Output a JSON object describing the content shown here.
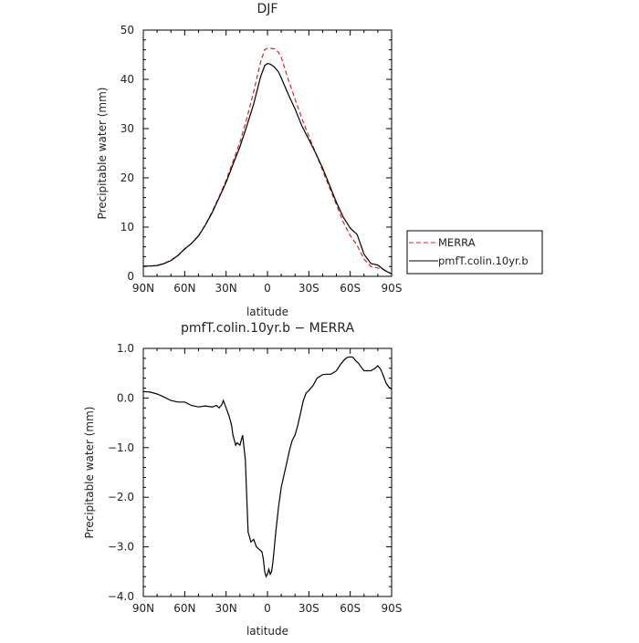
{
  "chart_data": [
    {
      "type": "line",
      "title": "DJF",
      "xlabel": "latitude",
      "ylabel": "Precipitable water (mm)",
      "x_tick_labels": [
        "90N",
        "60N",
        "30N",
        "0",
        "30S",
        "60S",
        "90S"
      ],
      "y_tick_labels": [
        "0",
        "10",
        "20",
        "30",
        "40",
        "50"
      ],
      "xlim": [
        90,
        -90
      ],
      "ylim": [
        0,
        50
      ],
      "grid": false,
      "legend_position": "right, outside plot",
      "series": [
        {
          "name": "MERRA",
          "color": "#e02020",
          "dash": "dashed",
          "x": [
            90,
            85,
            80,
            75,
            70,
            65,
            60,
            55,
            50,
            45,
            40,
            35,
            30,
            25,
            20,
            15,
            10,
            5,
            2,
            0,
            -2,
            -5,
            -8,
            -10,
            -15,
            -20,
            -25,
            -30,
            -35,
            -40,
            -45,
            -50,
            -55,
            -60,
            -65,
            -70,
            -75,
            -80,
            -85,
            -90
          ],
          "values": [
            2.0,
            2.1,
            2.2,
            2.6,
            3.3,
            4.2,
            5.5,
            6.7,
            8.2,
            10.5,
            13.2,
            16.2,
            19.5,
            23.3,
            27.2,
            32.0,
            37.5,
            43.5,
            46.0,
            46.3,
            46.3,
            46.2,
            45.5,
            44.5,
            40.0,
            36.0,
            32.0,
            28.5,
            25.0,
            21.5,
            18.0,
            14.5,
            11.0,
            8.3,
            6.3,
            3.5,
            2.0,
            1.7,
            1.3,
            0.5
          ]
        },
        {
          "name": "pmfT.colin.10yr.b",
          "color": "#000000",
          "dash": "solid",
          "x": [
            90,
            85,
            80,
            75,
            70,
            65,
            60,
            55,
            50,
            45,
            40,
            35,
            30,
            25,
            20,
            15,
            10,
            5,
            2,
            0,
            -2,
            -5,
            -8,
            -10,
            -15,
            -20,
            -25,
            -30,
            -35,
            -40,
            -45,
            -50,
            -55,
            -60,
            -65,
            -70,
            -75,
            -80,
            -85,
            -90
          ],
          "values": [
            2.1,
            2.1,
            2.2,
            2.6,
            3.2,
            4.2,
            5.6,
            6.7,
            8.2,
            10.4,
            13.0,
            16.0,
            19.1,
            22.7,
            26.3,
            30.5,
            35.0,
            40.5,
            42.8,
            43.2,
            43.1,
            42.5,
            41.5,
            40.3,
            37.0,
            34.0,
            30.5,
            27.8,
            25.0,
            22.0,
            18.5,
            15.0,
            12.0,
            9.8,
            8.5,
            4.5,
            2.6,
            2.3,
            1.2,
            0.5
          ]
        }
      ]
    },
    {
      "type": "line",
      "title": "pmfT.colin.10yr.b − MERRA",
      "xlabel": "latitude",
      "ylabel": "Precipitable water (mm)",
      "x_tick_labels": [
        "90N",
        "60N",
        "30N",
        "0",
        "30S",
        "60S",
        "90S"
      ],
      "y_tick_labels": [
        "1.0",
        "0.0",
        "−1.0",
        "−2.0",
        "−3.0",
        "−4.0"
      ],
      "y_tick_values": [
        1,
        0,
        -1,
        -2,
        -3,
        -4
      ],
      "xlim": [
        90,
        -90
      ],
      "ylim": [
        -4,
        1
      ],
      "grid": false,
      "series": [
        {
          "color": "#000000",
          "dash": "solid",
          "x": [
            90,
            85,
            80,
            75,
            70,
            65,
            60,
            55,
            50,
            45,
            40,
            37,
            35,
            33,
            32,
            30,
            28,
            26,
            25,
            23,
            22,
            20,
            18,
            16,
            15,
            14,
            12,
            10,
            8,
            6,
            4,
            3,
            2,
            1,
            0,
            -1,
            -2,
            -3,
            -4,
            -5,
            -6,
            -7,
            -8,
            -9,
            -10,
            -12,
            -14,
            -16,
            -18,
            -20,
            -22,
            -24,
            -26,
            -28,
            -30,
            -33,
            -36,
            -40,
            -43,
            -46,
            -50,
            -53,
            -56,
            -58,
            -60,
            -62,
            -64,
            -66,
            -68,
            -70,
            -72,
            -75,
            -78,
            -80,
            -82,
            -84,
            -86,
            -88,
            -90
          ],
          "values": [
            0.13,
            0.12,
            0.08,
            0.02,
            -0.05,
            -0.08,
            -0.08,
            -0.15,
            -0.18,
            -0.16,
            -0.18,
            -0.15,
            -0.2,
            -0.13,
            -0.05,
            -0.2,
            -0.35,
            -0.55,
            -0.75,
            -0.95,
            -0.9,
            -0.95,
            -0.75,
            -1.25,
            -2.0,
            -2.7,
            -2.9,
            -2.85,
            -3.0,
            -3.05,
            -3.1,
            -3.25,
            -3.5,
            -3.6,
            -3.55,
            -3.45,
            -3.55,
            -3.5,
            -3.3,
            -3.0,
            -2.7,
            -2.45,
            -2.2,
            -2.0,
            -1.8,
            -1.55,
            -1.3,
            -1.05,
            -0.85,
            -0.75,
            -0.55,
            -0.3,
            -0.05,
            0.1,
            0.15,
            0.25,
            0.4,
            0.47,
            0.48,
            0.48,
            0.55,
            0.68,
            0.78,
            0.82,
            0.83,
            0.82,
            0.75,
            0.7,
            0.62,
            0.55,
            0.55,
            0.55,
            0.6,
            0.65,
            0.58,
            0.45,
            0.3,
            0.22,
            0.18
          ]
        }
      ]
    }
  ]
}
